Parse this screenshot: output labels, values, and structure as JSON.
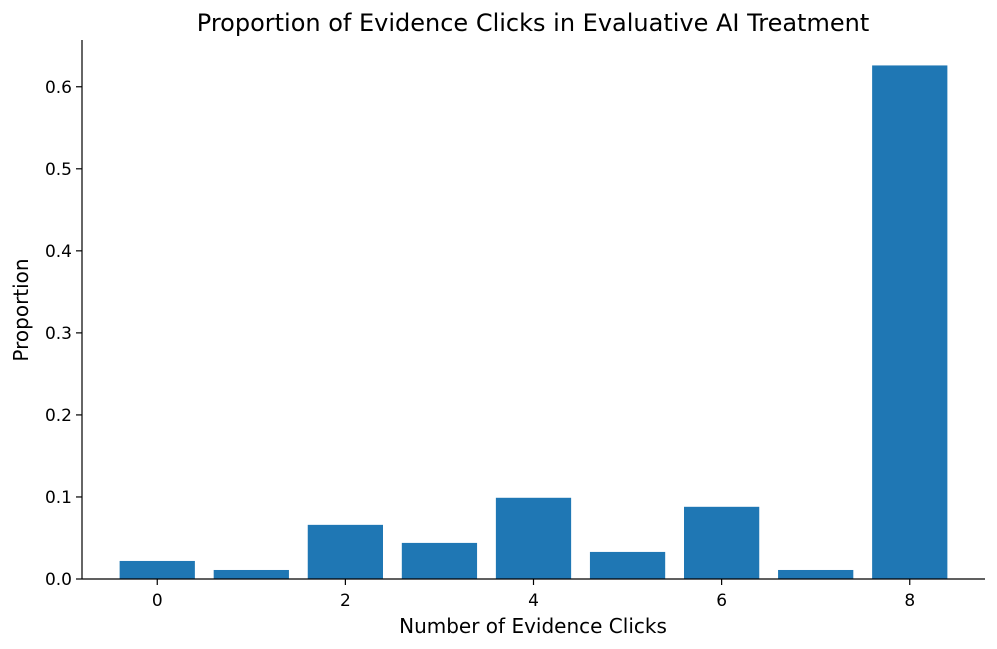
{
  "chart_data": {
    "type": "bar",
    "title": "Proportion of Evidence Clicks in Evaluative AI Treatment",
    "xlabel": "Number of Evidence Clicks",
    "ylabel": "Proportion",
    "x": [
      0,
      1,
      2,
      3,
      4,
      5,
      6,
      7,
      8
    ],
    "values": [
      0.022,
      0.011,
      0.066,
      0.044,
      0.099,
      0.033,
      0.088,
      0.011,
      0.626
    ],
    "xticks": [
      "0",
      "2",
      "4",
      "6",
      "8"
    ],
    "yticks": [
      "0.0",
      "0.1",
      "0.2",
      "0.3",
      "0.4",
      "0.5",
      "0.6"
    ],
    "ylim": [
      0,
      0.657
    ],
    "xlim": [
      -0.8,
      8.8
    ],
    "bar_color": "#1f77b4",
    "grid": false,
    "legend": "none"
  }
}
